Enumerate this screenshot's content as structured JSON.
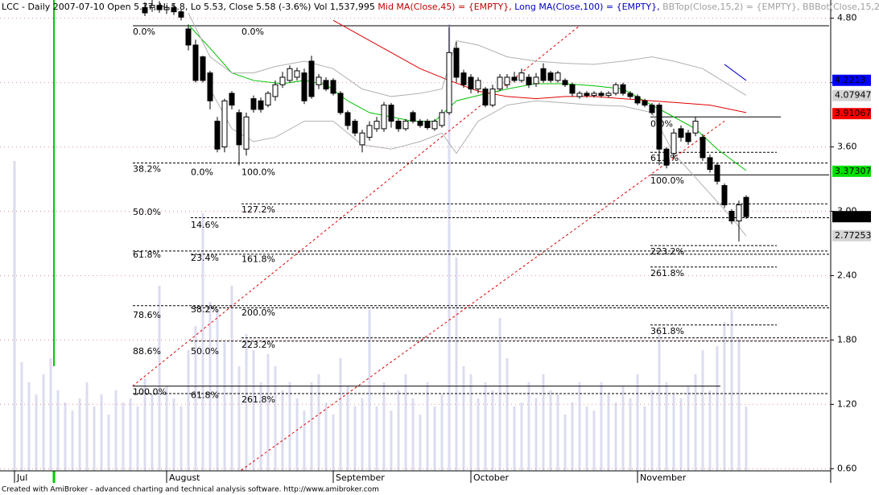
{
  "chart_data": {
    "type": "candlestick",
    "title_segments": [
      {
        "text": "LCC - Daily 2007-07-10 Open 5.77, Hi 5.8, Lo 5.53, Close 5.58 (-3.6%) Vol 1,537,995 ",
        "color": "#000000"
      },
      {
        "text": "Mid MA(Close,45) = {EMPTY},",
        "color": "#c00000"
      },
      {
        "text": " Long MA(Close,100) = {EMPTY},",
        "color": "#0000c0"
      },
      {
        "text": " BBTop(Close,15,2) = {EMPTY},",
        "color": "#a0a0a0"
      },
      {
        "text": " BBBot(Close,15,2) = {EMPTY}",
        "color": "#a0a0a0"
      }
    ],
    "footer": "Created with AmiBroker - advanced charting and technical analysis software. http://www.amibroker.com",
    "categories": [
      "Jul",
      null,
      null,
      null,
      null,
      null,
      null,
      null,
      null,
      null,
      null,
      null,
      null,
      null,
      null,
      null,
      null,
      null,
      null,
      null,
      null,
      "August",
      null,
      null,
      null,
      null,
      null,
      null,
      null,
      null,
      null,
      null,
      null,
      null,
      null,
      null,
      null,
      null,
      null,
      null,
      null,
      null,
      null,
      null,
      "September",
      null,
      null,
      null,
      null,
      null,
      null,
      null,
      null,
      null,
      null,
      null,
      null,
      null,
      null,
      null,
      null,
      null,
      null,
      "October",
      null,
      null,
      null,
      null,
      null,
      null,
      null,
      null,
      null,
      null,
      null,
      null,
      null,
      null,
      null,
      null,
      null,
      null,
      null,
      null,
      null,
      null,
      "November",
      null,
      null,
      null,
      null,
      null,
      null,
      null,
      null,
      null,
      null,
      null,
      null,
      null,
      null,
      null
    ],
    "open": [
      null,
      null,
      null,
      null,
      null,
      null,
      null,
      null,
      null,
      null,
      null,
      null,
      null,
      null,
      null,
      null,
      null,
      null,
      4.9,
      4.9,
      4.92,
      4.88,
      4.9,
      4.86,
      4.7,
      4.55,
      4.44,
      4.29,
      3.84,
      3.6,
      4.1,
      3.92,
      3.58,
      4.05,
      4.03,
      3.99,
      4.07,
      4.18,
      4.22,
      4.25,
      4.29,
      4.4,
      4.18,
      4.22,
      4.22,
      4.1,
      3.92,
      3.84,
      3.62,
      3.69,
      3.77,
      3.77,
      3.99,
      3.84,
      3.77,
      3.92,
      3.84,
      3.84,
      3.77,
      3.8,
      3.92,
      4.52,
      4.29,
      4.25,
      4.14,
      4.14,
      3.99,
      4.14,
      4.18,
      4.25,
      4.22,
      4.25,
      4.19,
      4.33,
      4.29,
      4.22,
      4.22,
      4.18,
      4.07,
      4.1,
      4.08,
      4.1,
      4.08,
      4.1,
      4.18,
      4.1,
      4.07,
      4.03,
      3.99,
      3.99,
      3.58,
      3.54,
      3.77,
      3.73,
      3.73,
      3.69,
      3.5,
      3.43,
      3.24,
      3.0,
      2.91,
      3.13
    ],
    "high": [
      null,
      null,
      null,
      null,
      null,
      null,
      null,
      null,
      null,
      null,
      null,
      null,
      null,
      null,
      null,
      null,
      null,
      null,
      4.95,
      4.98,
      4.96,
      4.92,
      4.94,
      4.88,
      4.74,
      4.6,
      4.45,
      4.31,
      3.88,
      4.05,
      4.12,
      3.95,
      3.92,
      4.08,
      4.06,
      4.12,
      4.22,
      4.3,
      4.36,
      4.34,
      4.33,
      4.45,
      4.28,
      4.25,
      4.24,
      4.12,
      3.94,
      3.86,
      3.76,
      3.84,
      3.88,
      4.02,
      4.01,
      3.86,
      3.86,
      3.94,
      3.86,
      3.86,
      3.86,
      3.95,
      4.72,
      4.58,
      4.32,
      4.28,
      4.25,
      4.16,
      4.18,
      4.28,
      4.28,
      4.3,
      4.33,
      4.28,
      4.29,
      4.38,
      4.31,
      4.31,
      4.24,
      4.2,
      4.12,
      4.12,
      4.12,
      4.12,
      4.12,
      4.2,
      4.2,
      4.12,
      4.09,
      4.05,
      4.01,
      4.01,
      3.6,
      3.77,
      3.8,
      3.76,
      3.88,
      3.72,
      3.53,
      3.45,
      3.26,
      3.02,
      3.1,
      3.15
    ],
    "low": [
      null,
      null,
      null,
      null,
      null,
      null,
      null,
      null,
      null,
      null,
      null,
      null,
      null,
      null,
      null,
      null,
      null,
      null,
      4.82,
      4.86,
      4.85,
      4.84,
      4.83,
      4.78,
      4.5,
      4.2,
      4.2,
      3.95,
      3.55,
      3.55,
      3.95,
      3.43,
      3.52,
      3.92,
      3.92,
      3.97,
      4.03,
      4.15,
      4.2,
      4.22,
      4.0,
      4.05,
      4.14,
      4.12,
      4.08,
      3.9,
      3.76,
      3.7,
      3.55,
      3.66,
      3.74,
      3.74,
      3.78,
      3.74,
      3.75,
      3.82,
      3.78,
      3.76,
      3.75,
      3.78,
      3.9,
      4.2,
      4.15,
      4.1,
      4.1,
      3.97,
      3.97,
      4.12,
      4.15,
      4.2,
      4.2,
      4.15,
      4.16,
      4.2,
      4.2,
      4.2,
      4.16,
      4.07,
      4.05,
      4.06,
      4.06,
      4.06,
      4.06,
      4.08,
      4.08,
      4.05,
      3.99,
      3.97,
      3.9,
      3.43,
      3.4,
      3.5,
      3.65,
      3.62,
      3.7,
      3.47,
      3.36,
      3.25,
      3.03,
      2.88,
      2.72,
      2.93
    ],
    "close": [
      null,
      null,
      null,
      null,
      null,
      null,
      null,
      null,
      null,
      null,
      null,
      null,
      null,
      null,
      null,
      null,
      null,
      null,
      4.85,
      4.92,
      4.88,
      4.9,
      4.86,
      4.81,
      4.55,
      4.22,
      4.22,
      4.03,
      3.58,
      4.03,
      3.99,
      3.62,
      3.88,
      3.95,
      3.95,
      4.1,
      4.18,
      4.25,
      4.33,
      4.31,
      4.03,
      4.07,
      4.25,
      4.14,
      4.1,
      3.92,
      3.8,
      3.73,
      3.73,
      3.8,
      3.84,
      3.99,
      3.84,
      3.77,
      3.84,
      3.84,
      3.8,
      3.78,
      3.84,
      3.92,
      4.48,
      4.25,
      4.18,
      4.14,
      4.22,
      3.99,
      4.14,
      4.25,
      4.25,
      4.22,
      4.29,
      4.18,
      4.25,
      4.22,
      4.22,
      4.29,
      4.18,
      4.1,
      4.1,
      4.08,
      4.1,
      4.08,
      4.1,
      4.18,
      4.1,
      4.07,
      4.01,
      3.99,
      3.92,
      3.58,
      3.43,
      3.73,
      3.69,
      3.65,
      3.84,
      3.5,
      3.39,
      3.28,
      3.06,
      2.91,
      3.06,
      2.95
    ],
    "volume": [
      385,
      135,
      110,
      95,
      120,
      140,
      100,
      85,
      75,
      90,
      110,
      80,
      95,
      70,
      100,
      85,
      90,
      80,
      115,
      95,
      230,
      105,
      90,
      80,
      150,
      180,
      320,
      210,
      200,
      160,
      230,
      130,
      170,
      150,
      110,
      145,
      130,
      100,
      110,
      90,
      75,
      110,
      120,
      85,
      70,
      140,
      105,
      80,
      90,
      200,
      80,
      110,
      75,
      100,
      120,
      90,
      70,
      110,
      80,
      95,
      555,
      265,
      130,
      120,
      90,
      110,
      100,
      190,
      140,
      80,
      85,
      110,
      90,
      120,
      100,
      95,
      70,
      85,
      110,
      80,
      75,
      110,
      95,
      85,
      105,
      90,
      120,
      80,
      100,
      170,
      110,
      95,
      90,
      105,
      120,
      150,
      100,
      155,
      185,
      200,
      165,
      80
    ],
    "volume_color": "#dcdcf0",
    "overlays": [
      {
        "color": "#00c000",
        "x": [
          24,
          27,
          30,
          33,
          37,
          40,
          43,
          46,
          49,
          52,
          55,
          58,
          61,
          64,
          68,
          72,
          76,
          80,
          84,
          88,
          91,
          94,
          97,
          101
        ],
        "values": [
          4.74,
          4.52,
          4.29,
          4.22,
          4.19,
          4.22,
          4.18,
          4.03,
          3.92,
          3.88,
          3.84,
          3.84,
          4.03,
          4.08,
          4.14,
          4.19,
          4.19,
          4.17,
          4.14,
          3.99,
          3.88,
          3.77,
          3.58,
          3.38
        ]
      },
      {
        "color": "#e00000",
        "x": [
          44,
          48,
          52,
          56,
          60,
          64,
          68,
          72,
          76,
          80,
          84,
          88,
          92,
          96,
          101
        ],
        "values": [
          4.78,
          4.63,
          4.48,
          4.33,
          4.22,
          4.12,
          4.07,
          4.05,
          4.07,
          4.07,
          4.05,
          4.03,
          4.01,
          3.99,
          3.92
        ]
      },
      {
        "color": "#b0b0b0",
        "x": [
          24,
          27,
          30,
          33,
          36,
          40,
          44,
          48,
          52,
          56,
          59,
          61,
          64,
          68,
          72,
          76,
          80,
          84,
          88,
          91,
          95,
          101
        ],
        "values": [
          4.85,
          4.44,
          4.29,
          4.29,
          4.35,
          4.4,
          4.33,
          4.14,
          4.07,
          4.1,
          4.14,
          4.59,
          4.55,
          4.44,
          4.4,
          4.38,
          4.37,
          4.4,
          4.44,
          4.4,
          4.33,
          4.08
        ]
      },
      {
        "color": "#b0b0b0",
        "x": [
          27,
          30,
          33,
          36,
          40,
          44,
          48,
          52,
          56,
          59,
          61,
          64,
          68,
          72,
          76,
          80,
          84,
          88,
          91,
          95,
          99,
          101
        ],
        "values": [
          4.14,
          3.77,
          3.65,
          3.69,
          3.84,
          3.84,
          3.62,
          3.58,
          3.65,
          3.73,
          3.54,
          3.84,
          3.99,
          4.03,
          4.01,
          3.99,
          3.98,
          3.92,
          3.54,
          3.24,
          2.94,
          2.77
        ]
      },
      {
        "color": "#0000c0",
        "x": [
          98,
          101
        ],
        "values": [
          4.37,
          4.22
        ]
      }
    ],
    "trendlines": [
      {
        "color": "#e00000",
        "x": [
          16.3,
          78
        ],
        "values": [
          1.37,
          4.73
        ]
      },
      {
        "color": "#e00000",
        "x": [
          31.3,
          98
        ],
        "values": [
          0.585,
          3.84
        ]
      }
    ],
    "hlines": [
      {
        "value": 4.73,
        "dashed": false
      },
      {
        "value": 3.45,
        "dashed": true
      },
      {
        "value": 3.07,
        "dashed": true
      },
      {
        "value": 2.94,
        "dashed": true
      },
      {
        "value": 2.63,
        "dashed": true
      },
      {
        "value": 2.6,
        "dashed": true
      },
      {
        "value": 2.12,
        "dashed": true
      },
      {
        "value": 2.1,
        "dashed": true
      },
      {
        "value": 1.82,
        "dashed": true
      },
      {
        "value": 1.79,
        "dashed": true
      },
      {
        "value": 1.37,
        "dashed": false
      },
      {
        "value": 1.3,
        "dashed": true
      },
      {
        "value": 3.88,
        "dashed": false
      },
      {
        "value": 3.55,
        "dashed": true
      },
      {
        "value": 3.34,
        "dashed": false
      },
      {
        "value": 2.68,
        "dashed": true
      },
      {
        "value": 2.48,
        "dashed": true
      },
      {
        "value": 1.94,
        "dashed": true
      }
    ],
    "fib_groups": [
      {
        "levels": [
          {
            "label": "0.0%",
            "value": 4.73
          },
          {
            "label": "38.2%",
            "value": 3.45
          },
          {
            "label": "50.0%",
            "value": 3.05
          },
          {
            "label": "61.8%",
            "value": 2.65
          },
          {
            "label": "78.6%",
            "value": 2.09
          },
          {
            "label": "88.6%",
            "value": 1.75
          },
          {
            "label": "100.0%",
            "value": 1.37
          }
        ]
      },
      {
        "levels": [
          {
            "label": "0.0%",
            "value": 3.42
          },
          {
            "label": "14.6%",
            "value": 2.93
          },
          {
            "label": "23.4%",
            "value": 2.62
          },
          {
            "label": "38.2%",
            "value": 2.14
          },
          {
            "label": "50.0%",
            "value": 1.75
          },
          {
            "label": "61.8%",
            "value": 1.34
          }
        ]
      },
      {
        "levels": [
          {
            "label": "0.0%",
            "value": 4.73
          },
          {
            "label": "100.0%",
            "value": 3.42
          },
          {
            "label": "127.2%",
            "value": 3.07
          },
          {
            "label": "161.8%",
            "value": 2.61
          },
          {
            "label": "200.0%",
            "value": 2.11
          },
          {
            "label": "223.2%",
            "value": 1.81
          },
          {
            "label": "261.8%",
            "value": 1.3
          }
        ]
      },
      {
        "levels": [
          {
            "label": "0.0%",
            "value": 3.87
          },
          {
            "label": "61.8%",
            "value": 3.55
          },
          {
            "label": "100.0%",
            "value": 3.34
          },
          {
            "label": "223.2%",
            "value": 2.68
          },
          {
            "label": "261.8%",
            "value": 2.48
          },
          {
            "label": "361.8%",
            "value": 1.94
          }
        ]
      }
    ],
    "last_values": [
      {
        "value": 4.2213,
        "color": "#0000ff",
        "text_color": "#ffffff"
      },
      {
        "value": 4.07947,
        "color": "#d4d4d4",
        "text_color": "#000000"
      },
      {
        "value": 3.91067,
        "color": "#ff0000",
        "text_color": "#000000"
      },
      {
        "value": 3.37307,
        "color": "#00e000",
        "text_color": "#000000"
      },
      {
        "value": 2.95,
        "color": "#000000",
        "text_color": "#ffffff"
      },
      {
        "value": 2.77253,
        "color": "#d4d4d4",
        "text_color": "#000000"
      }
    ],
    "ylim": [
      0.58,
      4.97
    ],
    "yticks": [
      {
        "value": 4.8,
        "label": "4.80"
      },
      {
        "value": 4.2,
        "label": "4.20"
      },
      {
        "value": 3.6,
        "label": "3.60"
      },
      {
        "value": 3.0,
        "label": "3.00"
      },
      {
        "value": 2.4,
        "label": "2.40"
      },
      {
        "value": 1.8,
        "label": "1.80"
      },
      {
        "value": 1.2,
        "label": "1.20"
      },
      {
        "value": 0.6,
        "label": "0.60"
      }
    ],
    "grid": true,
    "grid_color": "#e09090",
    "up_color": "#ffffff",
    "down_color": "#000000"
  }
}
